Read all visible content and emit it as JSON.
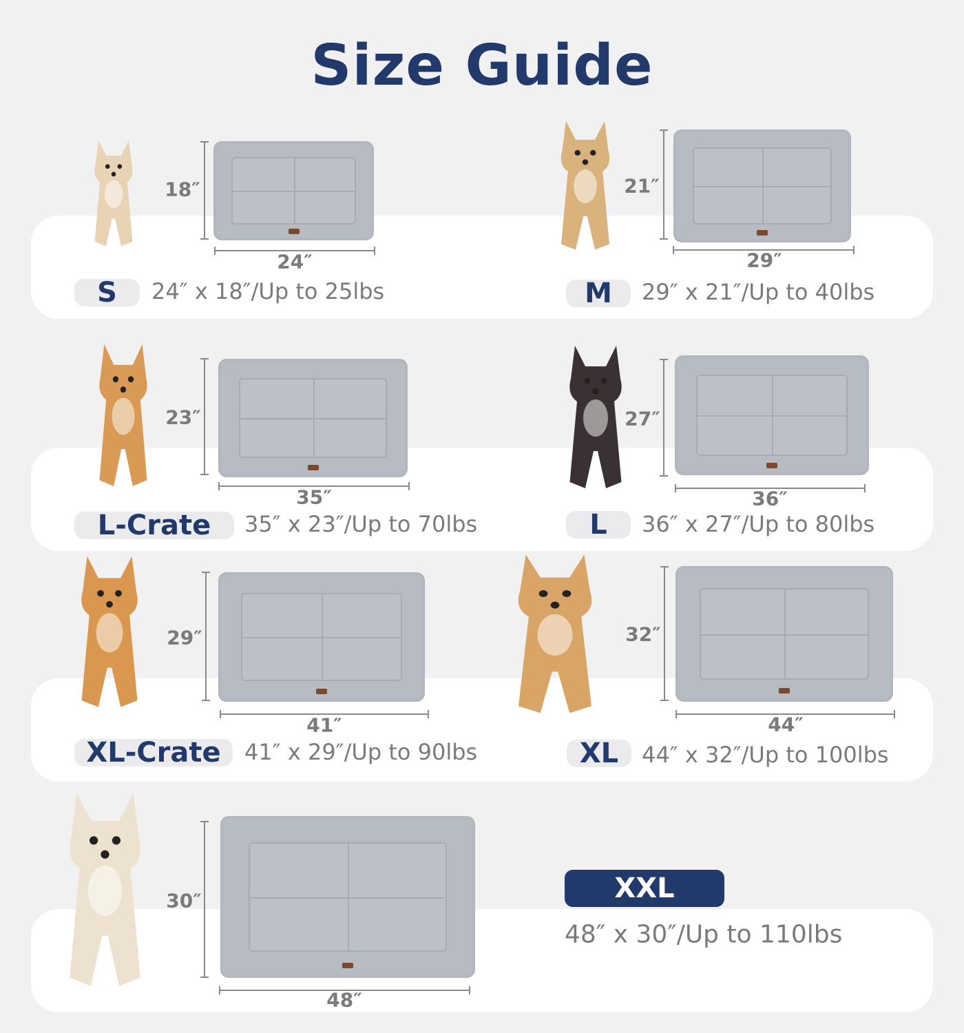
{
  "title": "Size Guide",
  "colors": {
    "title": "#22396b",
    "badge_text": "#22396b",
    "badge_fill": "#22396b",
    "mat": "#b7bbc2",
    "text_gray": "#7a7a7a"
  },
  "sizes": [
    {
      "label": "S",
      "width": "24″",
      "height": "18″",
      "description": "24″ x 18″/Up to 25lbs",
      "dog_color": "#e8d3b5"
    },
    {
      "label": "M",
      "width": "29″",
      "height": "21″",
      "description": "29″ x 21″/Up to 40lbs",
      "dog_color": "#d9b27c"
    },
    {
      "label": "L-Crate",
      "width": "35″",
      "height": "23″",
      "description": "35″ x 23″/Up to 70lbs",
      "dog_color": "#d99a55"
    },
    {
      "label": "L",
      "width": "36″",
      "height": "27″",
      "description": "36″ x 27″/Up to 80lbs",
      "dog_color": "#3a3232"
    },
    {
      "label": "XL-Crate",
      "width": "41″",
      "height": "29″",
      "description": "41″ x 29″/Up to 90lbs",
      "dog_color": "#d9974f"
    },
    {
      "label": "XL",
      "width": "44″",
      "height": "32″",
      "description": "44″ x 32″/Up to 100lbs",
      "dog_color": "#d9a567"
    },
    {
      "label": "XXL",
      "width": "48″",
      "height": "30″",
      "description": "48″ x 30″/Up to 110lbs",
      "dog_color": "#ece2cf"
    }
  ]
}
